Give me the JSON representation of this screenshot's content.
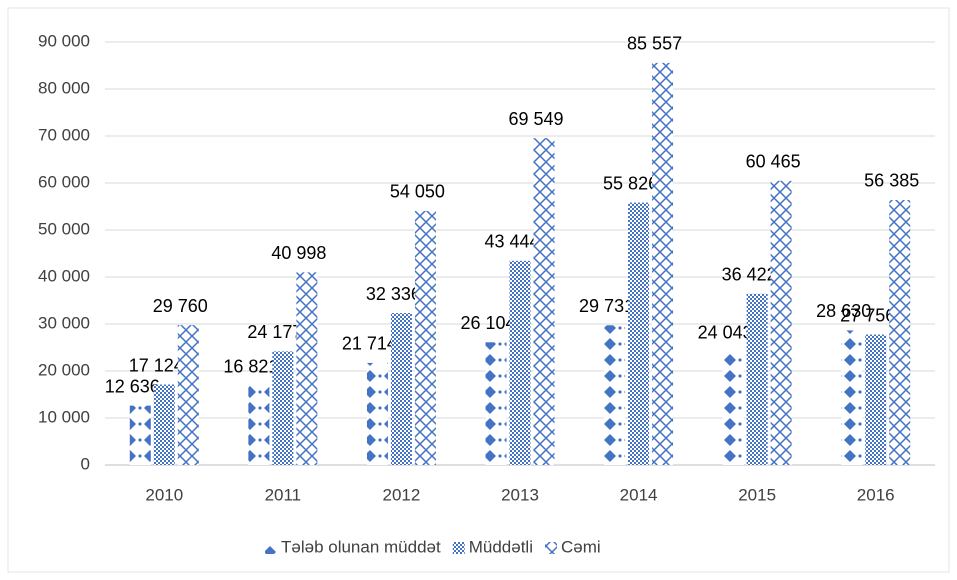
{
  "chart_data": {
    "type": "bar",
    "categories": [
      "2010",
      "2011",
      "2012",
      "2013",
      "2014",
      "2015",
      "2016"
    ],
    "series": [
      {
        "name": "Tələb olunan müddət",
        "color": "#4472c4",
        "values": [
          12636,
          16821,
          21714,
          26104,
          29731,
          24043,
          28630
        ],
        "value_labels": [
          "12 636",
          "16 821",
          "21 714",
          "26 104",
          "29 731",
          "24 043",
          "28 630"
        ]
      },
      {
        "name": "Müddətli",
        "color": "#4472c4",
        "values": [
          17124,
          24177,
          32336,
          43444,
          55826,
          36422,
          27756
        ],
        "value_labels": [
          "17 124",
          "24 177",
          "32 336",
          "43 444",
          "55 826",
          "36 422",
          "27 756"
        ]
      },
      {
        "name": "Cəmi",
        "color": "#4472c4",
        "values": [
          29760,
          40998,
          54050,
          69549,
          85557,
          60465,
          56385
        ],
        "value_labels": [
          "29 760",
          "40 998",
          "54 050",
          "69 549",
          "85 557",
          "60 465",
          "56 385"
        ]
      }
    ],
    "ylim": [
      0,
      90000
    ],
    "yticks": [
      0,
      {
        "value": 10000,
        "label": "10 000"
      },
      {
        "value": 20000,
        "label": "20 000"
      },
      {
        "value": 30000,
        "label": "30 000"
      },
      {
        "value": 40000,
        "label": "40 000"
      },
      {
        "value": 50000,
        "label": "50 000"
      },
      {
        "value": 60000,
        "label": "60 000"
      },
      {
        "value": 70000,
        "label": "70 000"
      },
      {
        "value": 80000,
        "label": "80 000"
      },
      {
        "value": 90000,
        "label": "90 000"
      }
    ],
    "grid": true,
    "legend": "bottom"
  }
}
